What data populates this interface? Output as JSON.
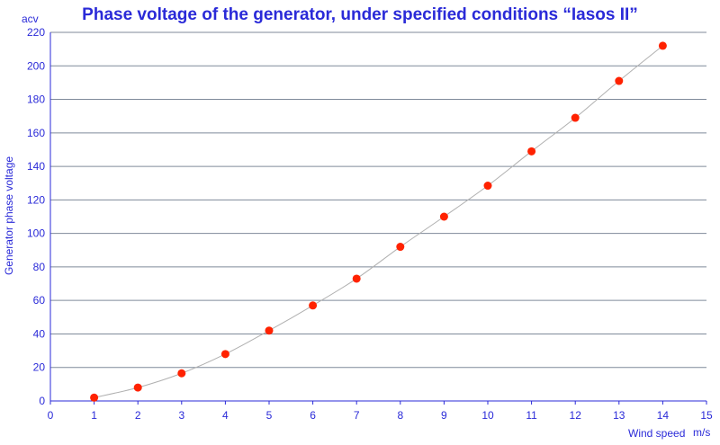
{
  "chart_data": {
    "type": "scatter",
    "title": "Phase voltage of the generator, under specified conditions “Iasos II”",
    "xlabel": "Wind speed",
    "x_unit": "m/s",
    "ylabel": "Generator phase voltage",
    "y_unit": "acv",
    "xlim": [
      0,
      15
    ],
    "ylim": [
      0,
      220
    ],
    "x_ticks": [
      "0",
      "1",
      "2",
      "3",
      "4",
      "5",
      "6",
      "7",
      "8",
      "9",
      "10",
      "11",
      "12",
      "13",
      "14",
      "15"
    ],
    "y_ticks": [
      "0",
      "20",
      "40",
      "60",
      "80",
      "100",
      "120",
      "140",
      "160",
      "180",
      "200",
      "220"
    ],
    "grid": "horizontal",
    "trend_line": true,
    "series": [
      {
        "x": [
          1,
          2,
          3,
          4,
          5,
          6,
          7,
          8,
          9,
          10,
          11,
          12,
          13,
          14
        ],
        "y": [
          2,
          8,
          16.5,
          28,
          42,
          57,
          73,
          92,
          110,
          128.5,
          149,
          169,
          191,
          212
        ]
      }
    ],
    "colors": {
      "text": "#2a2ad8",
      "points": "#ff2200",
      "grid": "#7f8a9a",
      "line": "#b0b0b0"
    }
  }
}
